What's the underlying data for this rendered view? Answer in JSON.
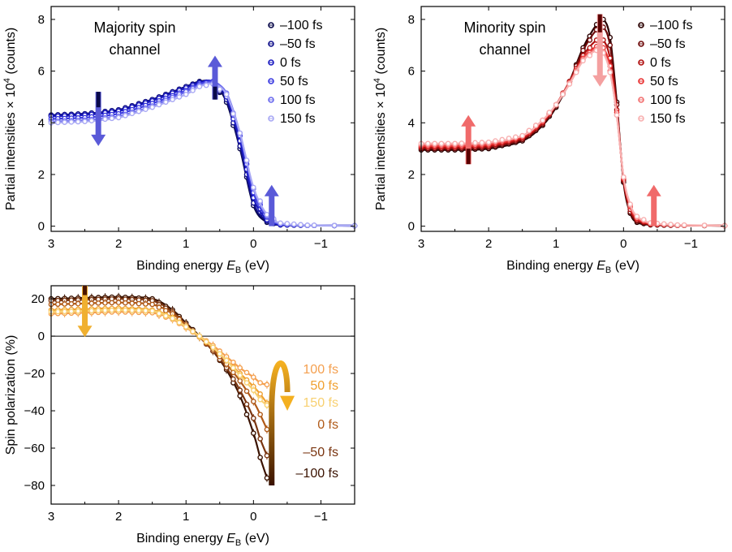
{
  "colors": {
    "blue": [
      "#0a0a4a",
      "#10108a",
      "#1a1ac0",
      "#3a3ae0",
      "#6a6aee",
      "#a8a8f4"
    ],
    "red": [
      "#2a0000",
      "#6e0a0a",
      "#b01010",
      "#e83030",
      "#f27070",
      "#f8b0b0"
    ],
    "orange": [
      "#3a1200",
      "#7a3510",
      "#b05a18",
      "#f0a030",
      "#f4a050",
      "#f8d070"
    ]
  },
  "chart_data": [
    {
      "type": "line",
      "annotation": "Majority spin\nchannel",
      "xlabel": "Binding energy E_B (eV)",
      "ylabel": "Partial intensities × 10^4 (counts)",
      "xlim": [
        3,
        -1.5
      ],
      "ylim": [
        -0.2,
        8.5
      ],
      "xticks": [
        "3",
        "2",
        "1",
        "0",
        "−1"
      ],
      "yticks": [
        "0",
        "2",
        "4",
        "6",
        "8"
      ],
      "legend_position": "top-right",
      "x": [
        3.0,
        2.5,
        2.0,
        1.5,
        1.0,
        0.8,
        0.6,
        0.4,
        0.2,
        0.0,
        -0.2,
        -0.4,
        -0.8,
        -1.5
      ],
      "series": [
        {
          "name": "–100 fs",
          "values": [
            4.3,
            4.35,
            4.5,
            4.9,
            5.4,
            5.6,
            5.55,
            4.8,
            3.0,
            0.8,
            0.15,
            0.05,
            0.03,
            0.02
          ]
        },
        {
          "name": "–50 fs",
          "values": [
            4.3,
            4.35,
            4.5,
            4.9,
            5.4,
            5.58,
            5.55,
            4.9,
            3.1,
            0.9,
            0.2,
            0.05,
            0.03,
            0.02
          ]
        },
        {
          "name": "0 fs",
          "values": [
            4.25,
            4.3,
            4.45,
            4.85,
            5.35,
            5.55,
            5.6,
            5.0,
            3.3,
            1.1,
            0.25,
            0.06,
            0.03,
            0.02
          ]
        },
        {
          "name": "50 fs",
          "values": [
            4.15,
            4.2,
            4.35,
            4.75,
            5.25,
            5.5,
            5.6,
            5.1,
            3.5,
            1.3,
            0.35,
            0.08,
            0.03,
            0.02
          ]
        },
        {
          "name": "100 fs",
          "values": [
            4.05,
            4.1,
            4.25,
            4.65,
            5.2,
            5.45,
            5.55,
            5.15,
            3.6,
            1.45,
            0.4,
            0.1,
            0.03,
            0.02
          ]
        },
        {
          "name": "150 fs",
          "values": [
            4.0,
            4.05,
            4.2,
            4.6,
            5.1,
            5.4,
            5.5,
            5.1,
            3.6,
            1.5,
            0.45,
            0.12,
            0.04,
            0.02
          ]
        }
      ]
    },
    {
      "type": "line",
      "annotation": "Minority spin\nchannel",
      "xlabel": "Binding energy E_B (eV)",
      "ylabel": "Partial intensities × 10^4 (counts)",
      "xlim": [
        3,
        -1.5
      ],
      "ylim": [
        -0.2,
        8.5
      ],
      "xticks": [
        "3",
        "2",
        "1",
        "0",
        "−1"
      ],
      "yticks": [
        "0",
        "2",
        "4",
        "6",
        "8"
      ],
      "legend_position": "top-right",
      "x": [
        3.0,
        2.5,
        2.0,
        1.5,
        1.2,
        1.0,
        0.8,
        0.6,
        0.4,
        0.3,
        0.2,
        0.1,
        0.0,
        -0.1,
        -0.2,
        -0.4,
        -0.8,
        -1.5
      ],
      "series": [
        {
          "name": "–100 fs",
          "values": [
            2.95,
            2.95,
            3.0,
            3.3,
            3.9,
            4.6,
            5.6,
            6.9,
            7.8,
            8.0,
            7.3,
            4.8,
            1.7,
            0.5,
            0.15,
            0.05,
            0.03,
            0.02
          ]
        },
        {
          "name": "–50 fs",
          "values": [
            3.0,
            3.0,
            3.05,
            3.35,
            3.95,
            4.65,
            5.6,
            6.8,
            7.6,
            7.7,
            7.0,
            4.7,
            1.75,
            0.55,
            0.2,
            0.06,
            0.03,
            0.02
          ]
        },
        {
          "name": "0 fs",
          "values": [
            3.05,
            3.05,
            3.1,
            3.4,
            4.0,
            4.7,
            5.6,
            6.6,
            7.2,
            7.2,
            6.5,
            4.5,
            1.8,
            0.65,
            0.25,
            0.08,
            0.03,
            0.02
          ]
        },
        {
          "name": "50 fs",
          "values": [
            3.1,
            3.1,
            3.15,
            3.45,
            4.05,
            4.7,
            5.55,
            6.5,
            6.95,
            6.9,
            6.2,
            4.4,
            1.85,
            0.75,
            0.3,
            0.1,
            0.04,
            0.02
          ]
        },
        {
          "name": "100 fs",
          "values": [
            3.15,
            3.15,
            3.2,
            3.5,
            4.1,
            4.7,
            5.55,
            6.45,
            6.85,
            6.75,
            6.0,
            4.3,
            1.9,
            0.8,
            0.35,
            0.12,
            0.04,
            0.02
          ]
        },
        {
          "name": "150 fs",
          "values": [
            3.2,
            3.2,
            3.25,
            3.5,
            4.1,
            4.7,
            5.5,
            6.4,
            6.8,
            6.7,
            5.95,
            4.3,
            1.9,
            0.85,
            0.38,
            0.13,
            0.05,
            0.02
          ]
        }
      ]
    },
    {
      "type": "line",
      "xlabel": "Binding energy E_B (eV)",
      "ylabel": "Spin polarization (%)",
      "xlim": [
        3,
        -1.5
      ],
      "ylim": [
        -90,
        27
      ],
      "xticks": [
        "3",
        "2",
        "1",
        "0",
        "−1"
      ],
      "yticks": [
        "20",
        "0",
        "−20",
        "−40",
        "−60",
        "−80"
      ],
      "legend_position": "right, labels at curve ends",
      "x": [
        3.0,
        2.5,
        2.0,
        1.5,
        1.2,
        1.0,
        0.8,
        0.6,
        0.4,
        0.2,
        0.0,
        -0.1,
        -0.2
      ],
      "series": [
        {
          "name": "–100 fs",
          "values": [
            20,
            20.5,
            21,
            20,
            14,
            7,
            0,
            -8,
            -18,
            -32,
            -52,
            -65,
            -76
          ]
        },
        {
          "name": "–50 fs",
          "values": [
            19,
            19.5,
            20,
            19,
            13,
            6,
            -0.5,
            -8,
            -17,
            -29,
            -44,
            -55,
            -64
          ]
        },
        {
          "name": "0 fs",
          "values": [
            17,
            17.5,
            18,
            17,
            12,
            6,
            -0.5,
            -7,
            -15,
            -24,
            -35,
            -42,
            -50
          ]
        },
        {
          "name": "50 fs",
          "values": [
            14,
            14.5,
            15,
            14,
            10,
            5,
            -0.5,
            -6,
            -13,
            -20,
            -27,
            -31,
            -36
          ]
        },
        {
          "name": "100 fs",
          "values": [
            12,
            12.5,
            13,
            12.5,
            9,
            4.5,
            0,
            -5,
            -11,
            -17,
            -22,
            -25,
            -26
          ]
        },
        {
          "name": "150 fs",
          "values": [
            13,
            13.5,
            14,
            13.5,
            9.5,
            5,
            0,
            -6,
            -13,
            -21,
            -29,
            -34,
            -37
          ]
        }
      ]
    }
  ]
}
